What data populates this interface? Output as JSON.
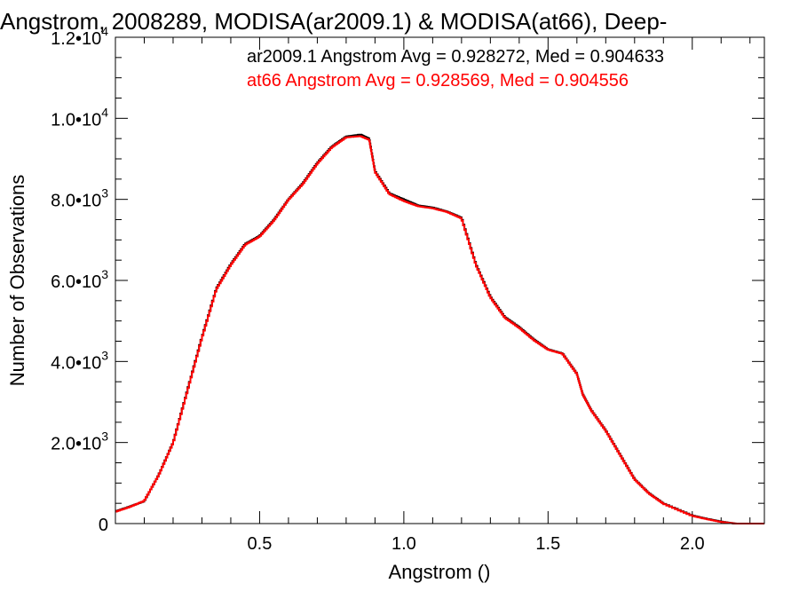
{
  "chart_data": {
    "type": "line",
    "title": "Angstrom, 2008289, MODISA(ar2009.1) & MODISA(at66), Deep-",
    "xlabel": "Angstrom ()",
    "ylabel": "Number of Observations",
    "xlim": [
      0.0,
      2.25
    ],
    "ylim": [
      0,
      12000
    ],
    "x_ticks": [
      {
        "value": 0.5,
        "label": "0.5"
      },
      {
        "value": 1.0,
        "label": "1.0"
      },
      {
        "value": 1.5,
        "label": "1.5"
      },
      {
        "value": 2.0,
        "label": "2.0"
      }
    ],
    "y_ticks": [
      {
        "value": 0,
        "mant": "0",
        "exp": ""
      },
      {
        "value": 2000,
        "mant": "2.0•10",
        "exp": "3"
      },
      {
        "value": 4000,
        "mant": "4.0•10",
        "exp": "3"
      },
      {
        "value": 6000,
        "mant": "6.0•10",
        "exp": "3"
      },
      {
        "value": 8000,
        "mant": "8.0•10",
        "exp": "3"
      },
      {
        "value": 10000,
        "mant": "1.0•10",
        "exp": "4"
      },
      {
        "value": 12000,
        "mant": "1.2•10",
        "exp": "4"
      }
    ],
    "annotations": [
      {
        "text": "ar2009.1 Angstrom Avg = 0.928272, Med = 0.904633",
        "color": "#000000"
      },
      {
        "text": "at66 Angstrom Avg = 0.928569, Med = 0.904556",
        "color": "#ff0000"
      }
    ],
    "series": [
      {
        "color": "#000000",
        "x": [
          0.0,
          0.05,
          0.1,
          0.15,
          0.2,
          0.25,
          0.3,
          0.35,
          0.4,
          0.45,
          0.5,
          0.55,
          0.6,
          0.65,
          0.7,
          0.75,
          0.8,
          0.85,
          0.88,
          0.9,
          0.95,
          1.0,
          1.05,
          1.1,
          1.15,
          1.2,
          1.25,
          1.3,
          1.35,
          1.4,
          1.45,
          1.5,
          1.55,
          1.6,
          1.62,
          1.65,
          1.7,
          1.75,
          1.8,
          1.85,
          1.9,
          2.0,
          2.05,
          2.1,
          2.15,
          2.2,
          2.25
        ],
        "y": [
          300,
          420,
          550,
          1200,
          2000,
          3300,
          4600,
          5800,
          6400,
          6900,
          7100,
          7500,
          8000,
          8400,
          8900,
          9300,
          9550,
          9600,
          9500,
          8700,
          8150,
          8000,
          7850,
          7800,
          7700,
          7550,
          6400,
          5600,
          5100,
          4850,
          4550,
          4300,
          4200,
          3700,
          3200,
          2800,
          2300,
          1700,
          1100,
          750,
          500,
          200,
          120,
          50,
          0,
          0,
          0
        ]
      },
      {
        "color": "#ff0000",
        "x": [
          0.0,
          0.05,
          0.1,
          0.15,
          0.2,
          0.25,
          0.3,
          0.35,
          0.4,
          0.45,
          0.5,
          0.55,
          0.6,
          0.65,
          0.7,
          0.75,
          0.8,
          0.85,
          0.88,
          0.9,
          0.95,
          1.0,
          1.05,
          1.1,
          1.15,
          1.2,
          1.25,
          1.3,
          1.35,
          1.4,
          1.45,
          1.5,
          1.55,
          1.6,
          1.62,
          1.65,
          1.7,
          1.75,
          1.8,
          1.85,
          1.9,
          2.0,
          2.05,
          2.1,
          2.15,
          2.2,
          2.25
        ],
        "y": [
          290,
          410,
          560,
          1190,
          1990,
          3280,
          4580,
          5780,
          6380,
          6880,
          7080,
          7480,
          7990,
          8380,
          8880,
          9280,
          9530,
          9560,
          9470,
          8680,
          8130,
          7960,
          7830,
          7780,
          7690,
          7530,
          6380,
          5580,
          5080,
          4830,
          4530,
          4290,
          4190,
          3690,
          3190,
          2790,
          2290,
          1690,
          1090,
          740,
          490,
          190,
          110,
          40,
          0,
          0,
          0
        ]
      }
    ]
  }
}
